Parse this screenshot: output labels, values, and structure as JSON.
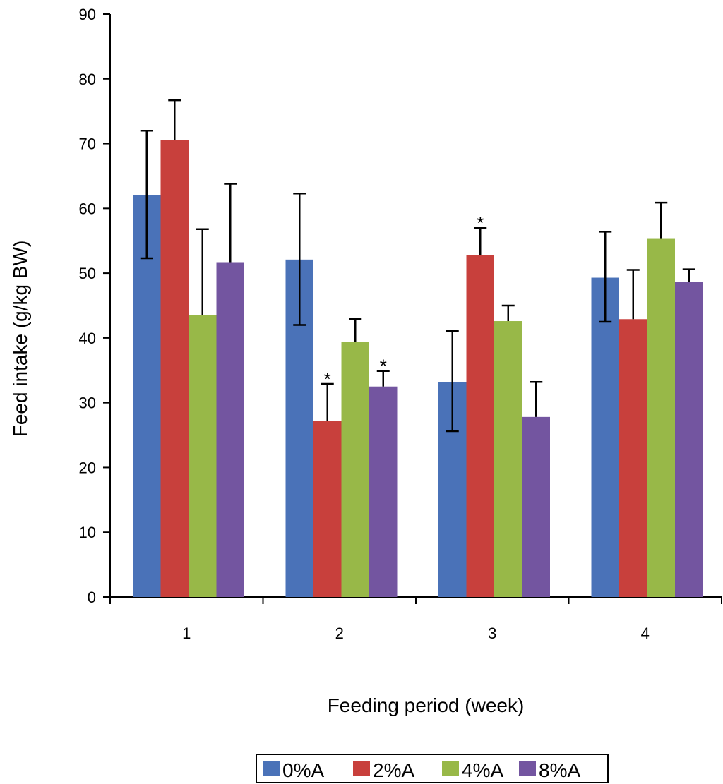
{
  "chart_data": {
    "type": "bar",
    "title": "",
    "xlabel": "Feeding period (week)",
    "ylabel": "Feed intake (g/kg BW)",
    "ylim": [
      0,
      90
    ],
    "yticks": [
      0,
      10,
      20,
      30,
      40,
      50,
      60,
      70,
      80,
      90
    ],
    "categories": [
      "1",
      "2",
      "3",
      "4"
    ],
    "legend_position": "bottom",
    "grid": false,
    "series": [
      {
        "name": "0%A",
        "color": "#4a72b8",
        "values": [
          62.1,
          52.1,
          33.2,
          49.3
        ],
        "error_upper": [
          72.0,
          62.3,
          41.1,
          56.4
        ],
        "error_lower": [
          52.3,
          42.0,
          25.6,
          42.5
        ],
        "significance": [
          "",
          "",
          "",
          ""
        ]
      },
      {
        "name": "2%A",
        "color": "#c8403c",
        "values": [
          70.6,
          27.2,
          52.8,
          42.9
        ],
        "error_upper": [
          76.7,
          32.9,
          57.0,
          50.5
        ],
        "error_lower": [
          null,
          null,
          null,
          null
        ],
        "significance": [
          "",
          "*",
          "*",
          ""
        ]
      },
      {
        "name": "4%A",
        "color": "#98b848",
        "values": [
          43.5,
          39.4,
          42.6,
          55.4
        ],
        "error_upper": [
          56.8,
          42.9,
          45.0,
          60.9
        ],
        "error_lower": [
          null,
          null,
          null,
          null
        ],
        "significance": [
          "",
          "",
          "",
          ""
        ]
      },
      {
        "name": "8%A",
        "color": "#7355a0",
        "values": [
          51.7,
          32.5,
          27.8,
          48.6
        ],
        "error_upper": [
          63.8,
          34.9,
          33.2,
          50.6
        ],
        "error_lower": [
          null,
          null,
          null,
          null
        ],
        "significance": [
          "",
          "*",
          "",
          ""
        ]
      }
    ]
  }
}
